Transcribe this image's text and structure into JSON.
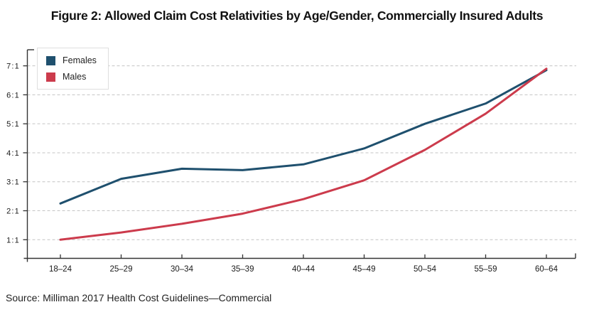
{
  "title": "Figure 2: Allowed Claim Cost Relativities by Age/Gender, Commercially Insured Adults",
  "source_note": "Source: Milliman 2017 Health Cost Guidelines—Commercial",
  "legend": {
    "items": [
      {
        "label": "Females"
      },
      {
        "label": "Males"
      }
    ]
  },
  "chart_data": {
    "type": "line",
    "title": "Figure 2: Allowed Claim Cost Relativities by Age/Gender, Commercially Insured Adults",
    "categories": [
      "18–24",
      "25–29",
      "30–34",
      "35–39",
      "40–44",
      "45–49",
      "50–54",
      "55–59",
      "60–64"
    ],
    "series": [
      {
        "name": "Females",
        "color": "#1f506e",
        "values": [
          2.25,
          3.1,
          3.45,
          3.4,
          3.6,
          4.15,
          5.0,
          5.7,
          6.85
        ]
      },
      {
        "name": "Males",
        "color": "#cc3b4c",
        "values": [
          1.0,
          1.25,
          1.55,
          1.9,
          2.4,
          3.05,
          4.1,
          5.35,
          6.9
        ]
      }
    ],
    "y_tick_labels": [
      "1:1",
      "2:1",
      "3:1",
      "4:1",
      "5:1",
      "6:1",
      "7:1"
    ],
    "ylim": [
      1,
      7
    ],
    "xlabel": "",
    "ylabel": "",
    "grid": "horizontal dashed",
    "legend_position": "top-left inside plot",
    "axis_color": "#333333",
    "gridline_color": "#c4c4c4",
    "source": "Source: Milliman 2017 Health Cost Guidelines—Commercial"
  }
}
